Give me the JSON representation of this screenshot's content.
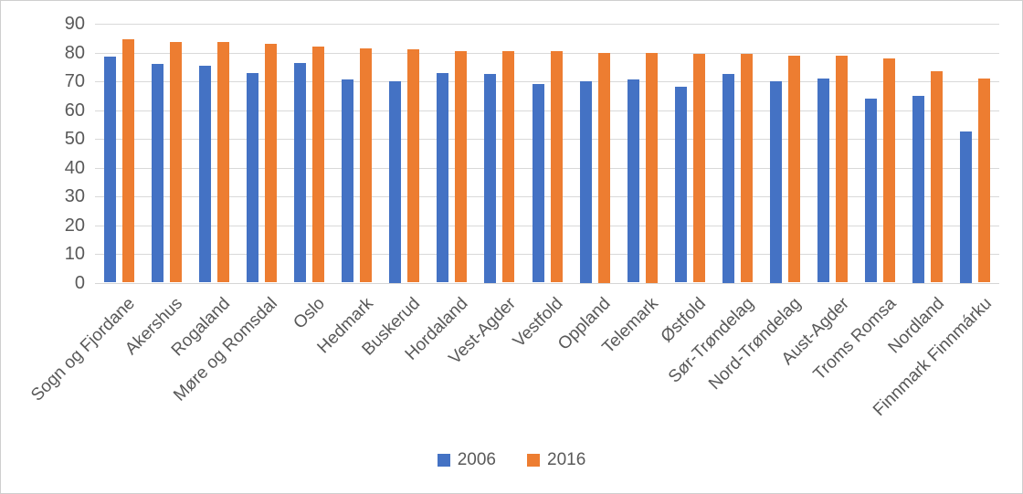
{
  "chart_data": {
    "type": "bar",
    "categories": [
      "Sogn og Fjordane",
      "Akershus",
      "Rogaland",
      "Møre og Romsdal",
      "Oslo",
      "Hedmark",
      "Buskerud",
      "Hordaland",
      "Vest-Agder",
      "Vestfold",
      "Oppland",
      "Telemark",
      "Østfold",
      "Sør-Trøndelag",
      "Nord-Trøndelag",
      "Aust-Agder",
      "Troms Romsa",
      "Nordland",
      "Finnmark Finnmárku"
    ],
    "series": [
      {
        "name": "2006",
        "color": "#4472C4",
        "values": [
          78.5,
          76,
          75.5,
          73,
          76.5,
          70.5,
          70,
          73,
          72.5,
          69,
          70,
          70.5,
          68,
          72.5,
          70,
          71,
          64,
          65,
          52.5
        ]
      },
      {
        "name": "2016",
        "color": "#ED7D31",
        "values": [
          84.5,
          83.5,
          83.5,
          83,
          82,
          81.5,
          81,
          80.5,
          80.5,
          80.5,
          80,
          80,
          79.5,
          79.5,
          79,
          79,
          78,
          73.5,
          71
        ]
      }
    ],
    "ylim": [
      0,
      90
    ],
    "yticks": [
      0,
      10,
      20,
      30,
      40,
      50,
      60,
      70,
      80,
      90
    ],
    "grid": "horizontal",
    "legend_position": "bottom"
  },
  "colors": {
    "gridline": "#d9d9d9",
    "axis_text": "#595959",
    "series_2006": "#4472C4",
    "series_2016": "#ED7D31"
  }
}
